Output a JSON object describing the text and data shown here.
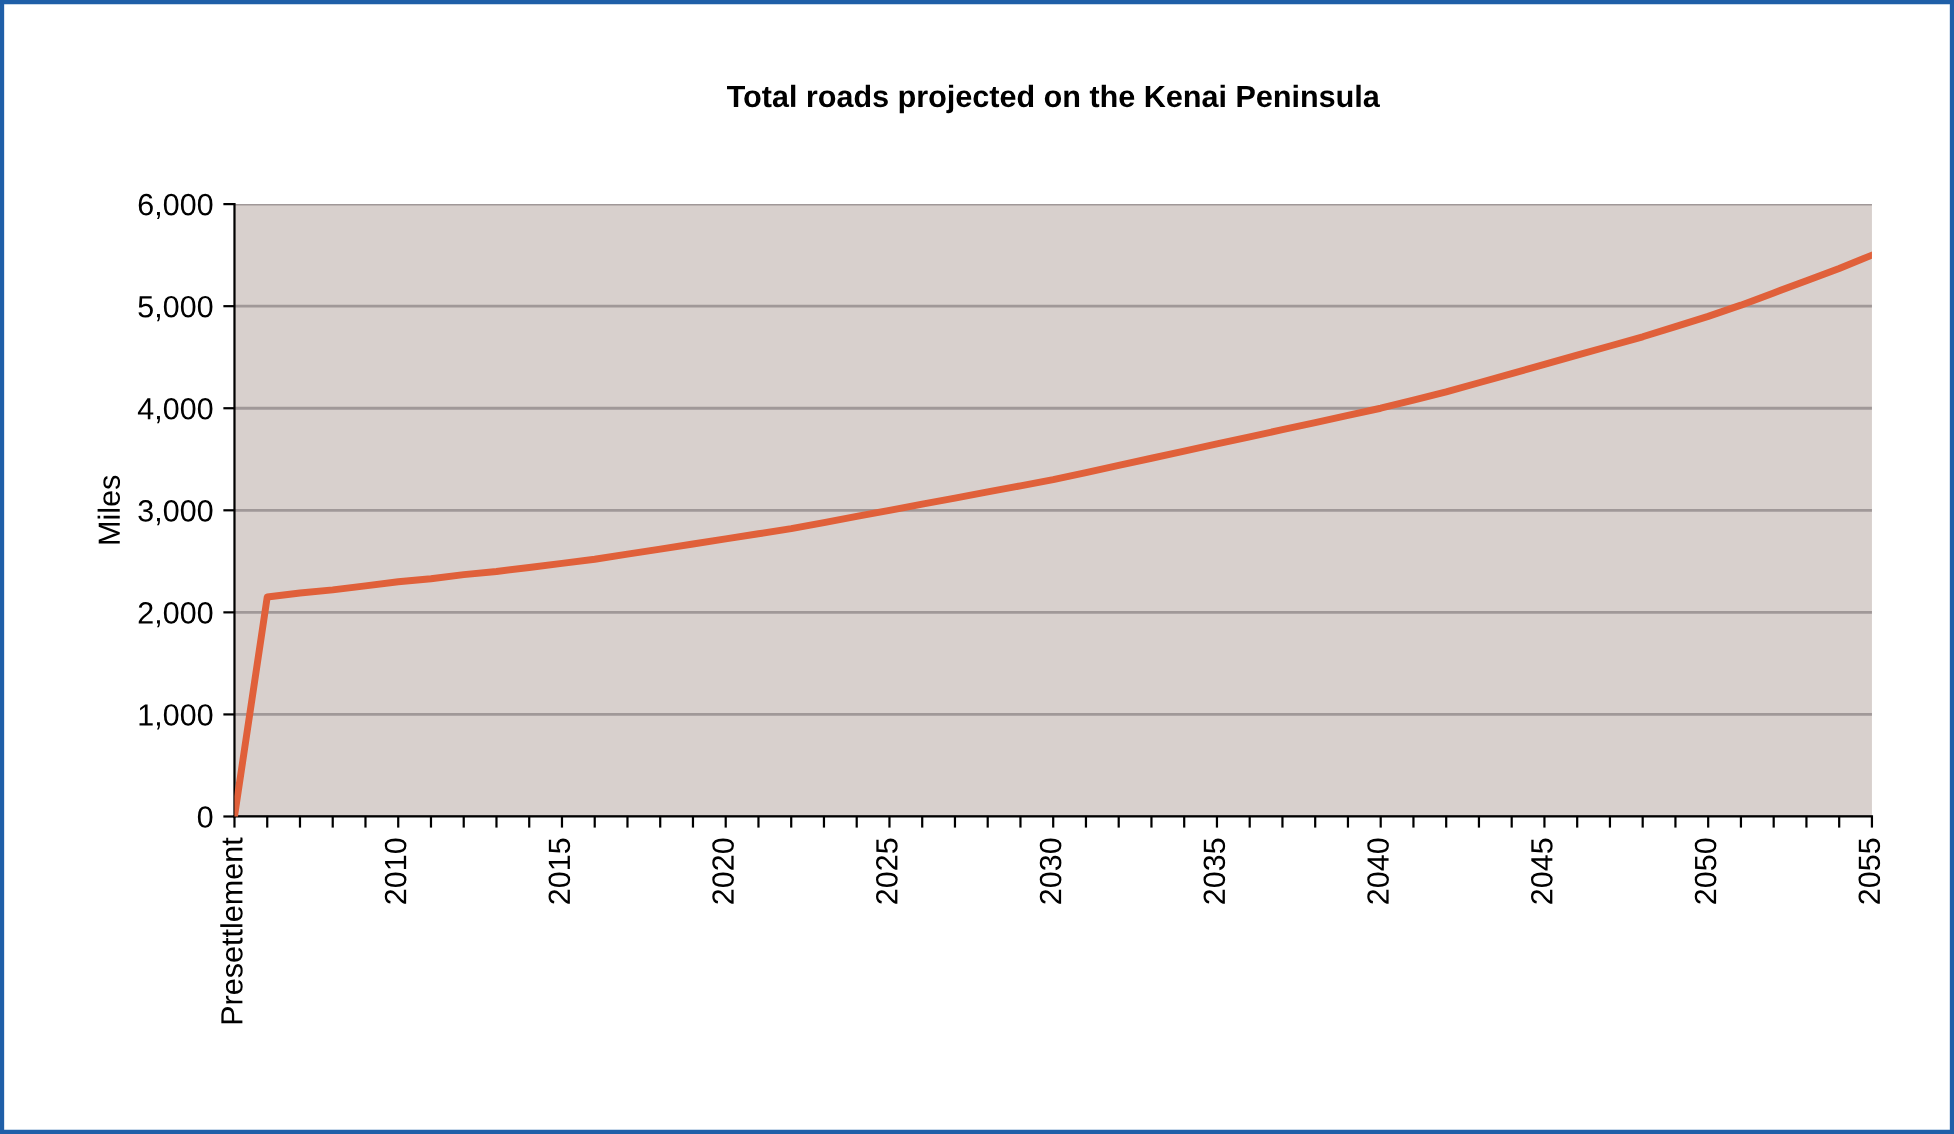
{
  "chart_data": {
    "type": "line",
    "title": "Total roads projected on the Kenai Peninsula",
    "ylabel": "Miles",
    "categories": [
      "Presettlement",
      null,
      null,
      null,
      null,
      "2010",
      null,
      null,
      null,
      null,
      "2015",
      null,
      null,
      null,
      null,
      "2020",
      null,
      null,
      null,
      null,
      "2025",
      null,
      null,
      null,
      null,
      "2030",
      null,
      null,
      null,
      null,
      "2035",
      null,
      null,
      null,
      null,
      "2040",
      null,
      null,
      null,
      null,
      "2045",
      null,
      null,
      null,
      null,
      "2050",
      null,
      null,
      null,
      null,
      "2055"
    ],
    "series": [
      {
        "color": "#e0603a",
        "values": [
          0,
          2150,
          2190,
          2220,
          2260,
          2300,
          2330,
          2370,
          2400,
          2440,
          2480,
          2520,
          2570,
          2620,
          2670,
          2720,
          2770,
          2820,
          2880,
          2940,
          3000,
          3060,
          3120,
          3180,
          3240,
          3300,
          3370,
          3440,
          3510,
          3580,
          3650,
          3720,
          3790,
          3860,
          3930,
          4000,
          4080,
          4160,
          4250,
          4340,
          4430,
          4520,
          4610,
          4700,
          4800,
          4900,
          5010,
          5130,
          5250,
          5370,
          5500
        ]
      }
    ],
    "ylim": [
      0,
      6000
    ],
    "yticks": [
      0,
      {
        "value": 1000,
        "label": "1,000"
      },
      {
        "value": 2000,
        "label": "2,000"
      },
      {
        "value": 3000,
        "label": "3,000"
      },
      {
        "value": 4000,
        "label": "4,000"
      },
      {
        "value": 5000,
        "label": "5,000"
      },
      {
        "value": 6000,
        "label": "6,000"
      }
    ],
    "grid": "y",
    "marker": "none",
    "line_style": "solid",
    "legend": false
  }
}
